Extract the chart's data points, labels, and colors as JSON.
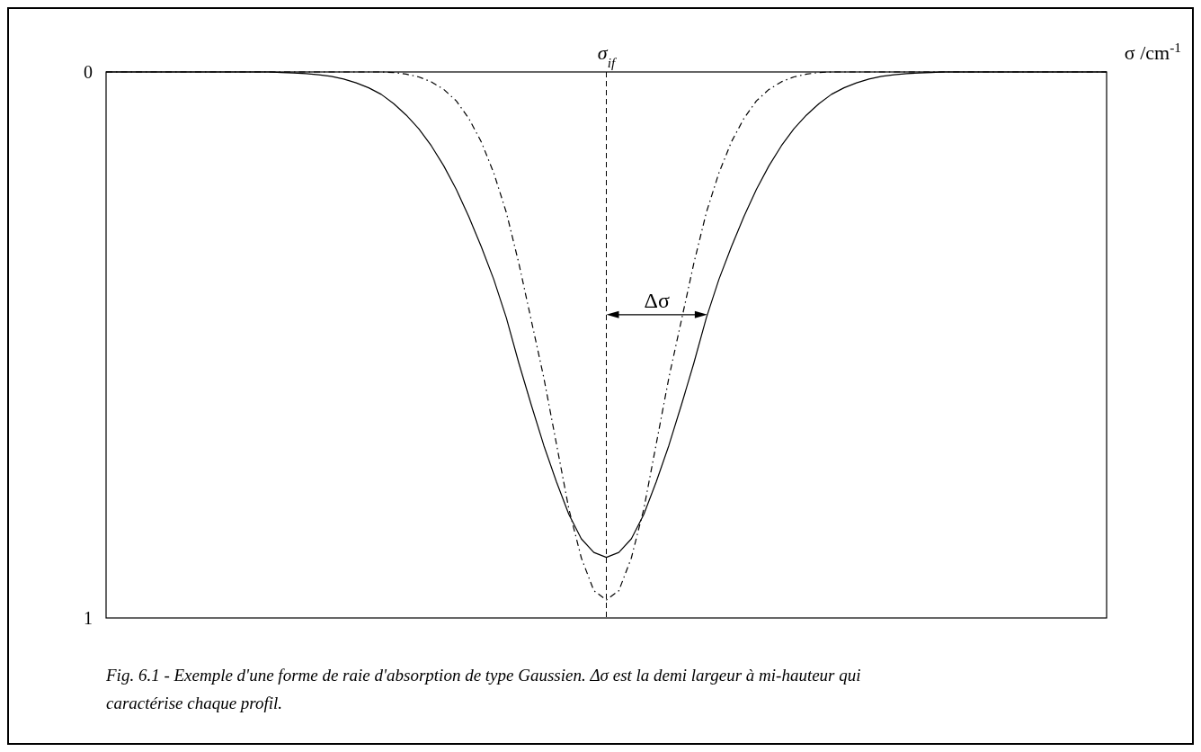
{
  "chart_data": {
    "type": "line",
    "xlabel": "σ /cm$^{-1}$",
    "ylim": [
      1,
      0
    ],
    "yticks": [
      0,
      1
    ],
    "tick_labels": "y",
    "categories": [
      null,
      null,
      null,
      null,
      null,
      null,
      null,
      null,
      null,
      null,
      null,
      null,
      null,
      null,
      null,
      null,
      null,
      null,
      null,
      null,
      null,
      null,
      null,
      null,
      null,
      null,
      null,
      null,
      null,
      null,
      null,
      null,
      null,
      null,
      null,
      null,
      null,
      null,
      null,
      null,
      null,
      null,
      null,
      null,
      null,
      null,
      null,
      null,
      null,
      null,
      null,
      null,
      null,
      null,
      null,
      null,
      null,
      null,
      null,
      null,
      null,
      null,
      null,
      null,
      null,
      null,
      null,
      null,
      null,
      null,
      null,
      null,
      null,
      null,
      null,
      null,
      null,
      null,
      null,
      null,
      null
    ],
    "series": [
      {
        "color": "#000000",
        "line_style": "solid",
        "values": [
          0,
          0,
          0,
          0,
          0,
          0,
          0,
          0,
          0,
          0,
          0,
          0,
          0,
          0,
          0.001,
          0.002,
          0.003,
          0.005,
          0.008,
          0.013,
          0.02,
          0.029,
          0.041,
          0.058,
          0.079,
          0.104,
          0.135,
          0.172,
          0.215,
          0.265,
          0.32,
          0.38,
          0.45,
          0.533,
          0.61,
          0.684,
          0.75,
          0.81,
          0.855,
          0.88,
          0.889,
          0.88,
          0.855,
          0.81,
          0.75,
          0.684,
          0.61,
          0.533,
          0.45,
          0.38,
          0.32,
          0.265,
          0.215,
          0.172,
          0.135,
          0.104,
          0.079,
          0.058,
          0.041,
          0.029,
          0.02,
          0.013,
          0.008,
          0.005,
          0.003,
          0.002,
          0.001,
          0,
          0,
          0,
          0,
          0,
          0,
          0,
          0,
          0,
          0,
          0,
          0,
          0,
          0
        ]
      },
      {
        "color": "#000000",
        "line_style": "dashed",
        "values": [
          0,
          0,
          0,
          0,
          0,
          0,
          0,
          0,
          0,
          0,
          0,
          0,
          0,
          0,
          0,
          0,
          0,
          0,
          0,
          0,
          0,
          0,
          0,
          0.001,
          0.004,
          0.009,
          0.018,
          0.032,
          0.053,
          0.085,
          0.128,
          0.185,
          0.257,
          0.35,
          0.455,
          0.56,
          0.68,
          0.8,
          0.89,
          0.95,
          0.967,
          0.95,
          0.89,
          0.8,
          0.68,
          0.56,
          0.455,
          0.35,
          0.257,
          0.185,
          0.128,
          0.085,
          0.053,
          0.032,
          0.018,
          0.009,
          0.004,
          0.001,
          0,
          0,
          0,
          0,
          0,
          0,
          0,
          0,
          0,
          0,
          0,
          0,
          0,
          0,
          0,
          0,
          0,
          0,
          0,
          0,
          0,
          0,
          0
        ]
      }
    ],
    "annotations": [
      "σ$_{if}$",
      "Δσ",
      "Fig. 6.1 - Exemple d'une forme de raie d'absorption de type Gaussien. Δσ est la demi largeur à mi-hauteur qui caractérise chaque profil."
    ]
  }
}
